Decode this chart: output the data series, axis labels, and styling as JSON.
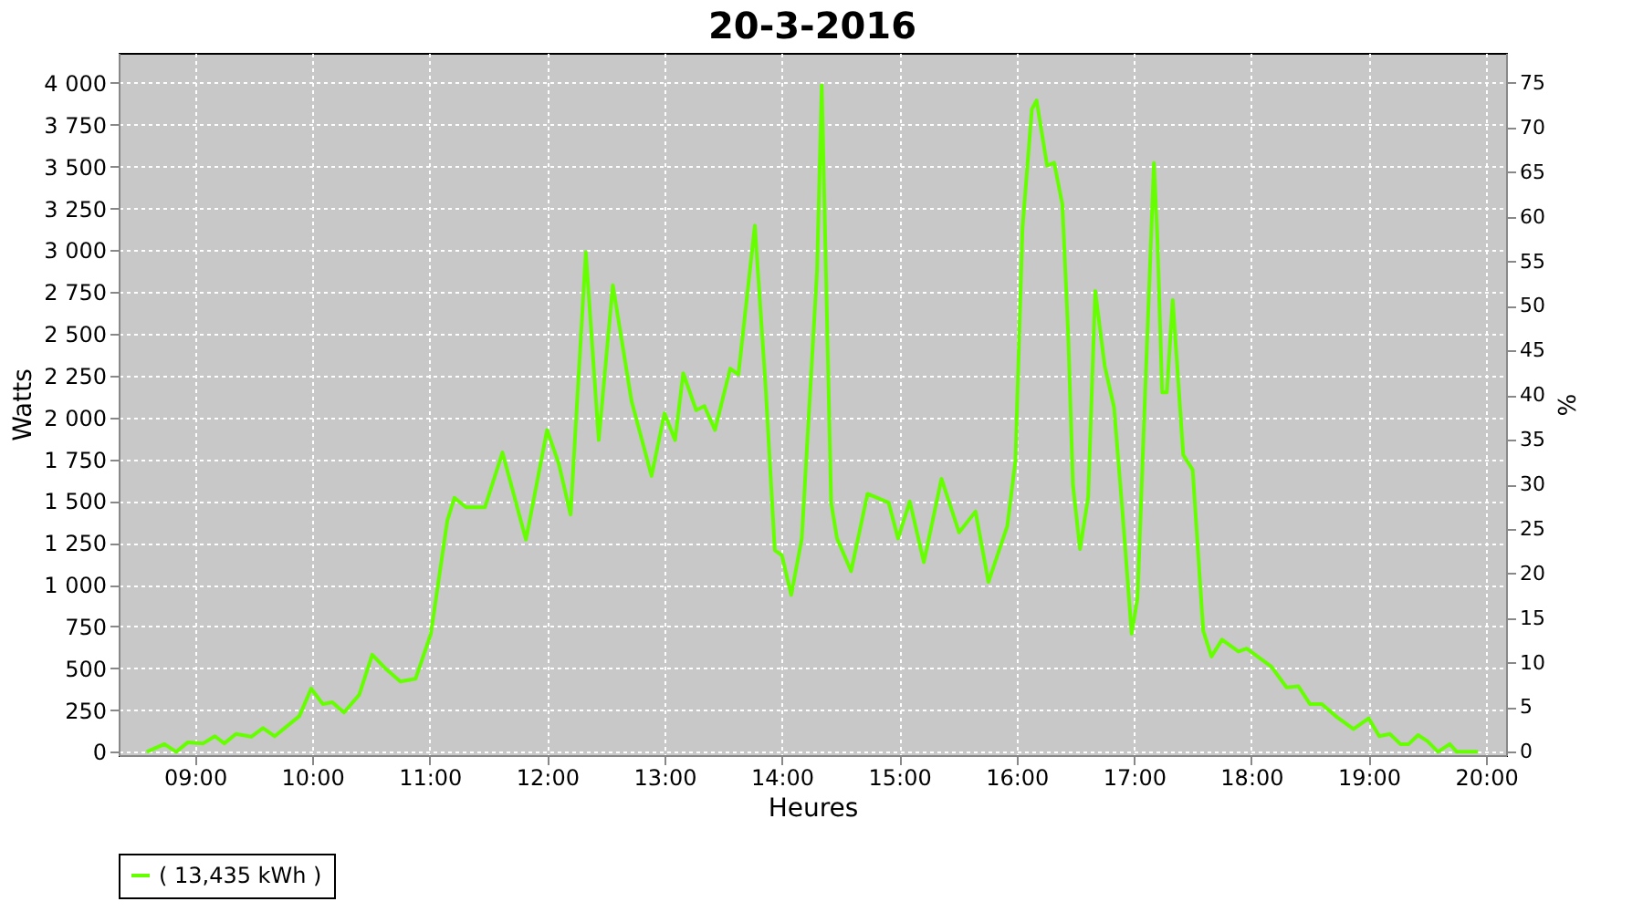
{
  "chart_data": {
    "type": "line",
    "title": "20-3-2016",
    "xlabel": "Heures",
    "ylabel": "Watts",
    "y2label": "%",
    "x": [
      8.59,
      8.74,
      8.84,
      8.94,
      9.07,
      9.17,
      9.25,
      9.35,
      9.48,
      9.58,
      9.68,
      9.89,
      9.99,
      10.09,
      10.17,
      10.27,
      10.4,
      10.51,
      10.62,
      10.75,
      10.88,
      11.01,
      11.15,
      11.21,
      11.31,
      11.47,
      11.62,
      11.82,
      12.0,
      12.1,
      12.2,
      12.33,
      12.44,
      12.56,
      12.72,
      12.89,
      13.0,
      13.09,
      13.16,
      13.27,
      13.34,
      13.43,
      13.56,
      13.63,
      13.77,
      13.86,
      13.94,
      14.0,
      14.08,
      14.17,
      14.3,
      14.34,
      14.42,
      14.47,
      14.59,
      14.73,
      14.91,
      14.99,
      15.09,
      15.21,
      15.36,
      15.51,
      15.65,
      15.76,
      15.92,
      15.99,
      16.05,
      16.13,
      16.17,
      16.26,
      16.32,
      16.39,
      16.44,
      16.48,
      16.54,
      16.61,
      16.67,
      16.75,
      16.83,
      16.9,
      16.98,
      17.03,
      17.1,
      17.17,
      17.2,
      17.24,
      17.28,
      17.33,
      17.42,
      17.5,
      17.59,
      17.66,
      17.75,
      17.89,
      17.96,
      18.17,
      18.3,
      18.4,
      18.5,
      18.6,
      18.73,
      18.87,
      19.0,
      19.09,
      19.18,
      19.27,
      19.34,
      19.42,
      19.5,
      19.59,
      19.69,
      19.75,
      19.93
    ],
    "series": [
      {
        "name": "( 13,435 kWh )",
        "color": "#66ff00",
        "values": [
          0,
          46,
          0,
          57,
          50,
          93,
          50,
          107,
          90,
          142,
          93,
          214,
          378,
          285,
          296,
          235,
          342,
          581,
          500,
          420,
          437,
          706,
          1383,
          1519,
          1462,
          1462,
          1790,
          1269,
          1925,
          1722,
          1419,
          2988,
          1864,
          2791,
          2096,
          1650,
          2025,
          1864,
          2264,
          2043,
          2068,
          1925,
          2292,
          2257,
          3147,
          2203,
          1205,
          1176,
          938,
          1276,
          2880,
          3986,
          1490,
          1276,
          1080,
          1543,
          1490,
          1276,
          1497,
          1134,
          1633,
          1312,
          1437,
          1016,
          1348,
          1740,
          3130,
          3843,
          3896,
          3505,
          3523,
          3273,
          2489,
          1597,
          1212,
          1525,
          2756,
          2310,
          2061,
          1453,
          706,
          920,
          2239,
          3522,
          3059,
          2150,
          2150,
          2702,
          1775,
          1687,
          724,
          570,
          671,
          600,
          618,
          510,
          385,
          392,
          285,
          285,
          207,
          136,
          200,
          93,
          107,
          46,
          46,
          100,
          64,
          0,
          46,
          0,
          0
        ]
      }
    ],
    "xlim": [
      8.35,
      20.17
    ],
    "xticks": [
      {
        "value": 9,
        "label": "09:00"
      },
      {
        "value": 10,
        "label": "10:00"
      },
      {
        "value": 11,
        "label": "11:00"
      },
      {
        "value": 12,
        "label": "12:00"
      },
      {
        "value": 13,
        "label": "13:00"
      },
      {
        "value": 14,
        "label": "14:00"
      },
      {
        "value": 15,
        "label": "15:00"
      },
      {
        "value": 16,
        "label": "16:00"
      },
      {
        "value": 17,
        "label": "17:00"
      },
      {
        "value": 18,
        "label": "18:00"
      },
      {
        "value": 19,
        "label": "19:00"
      },
      {
        "value": 20,
        "label": "20:00"
      }
    ],
    "ylim": [
      -20,
      4180
    ],
    "yticks": [
      0,
      250,
      500,
      750,
      {
        "value": 1000,
        "label": "1 000"
      },
      {
        "value": 1250,
        "label": "1 250"
      },
      {
        "value": 1500,
        "label": "1 500"
      },
      {
        "value": 1750,
        "label": "1 750"
      },
      {
        "value": 2000,
        "label": "2 000"
      },
      {
        "value": 2250,
        "label": "2 250"
      },
      {
        "value": 2500,
        "label": "2 500"
      },
      {
        "value": 2750,
        "label": "2 750"
      },
      {
        "value": 3000,
        "label": "3 000"
      },
      {
        "value": 3250,
        "label": "3 250"
      },
      {
        "value": 3500,
        "label": "3 500"
      },
      {
        "value": 3750,
        "label": "3 750"
      },
      {
        "value": 4000,
        "label": "4 000"
      }
    ],
    "y2lim": [
      -0.375,
      78.375
    ],
    "y2ticks": [
      0,
      5,
      10,
      15,
      20,
      25,
      30,
      35,
      40,
      45,
      50,
      55,
      60,
      65,
      70,
      75
    ],
    "grid": true,
    "legend": "bottom",
    "marker": "none",
    "line_style": "solid"
  }
}
